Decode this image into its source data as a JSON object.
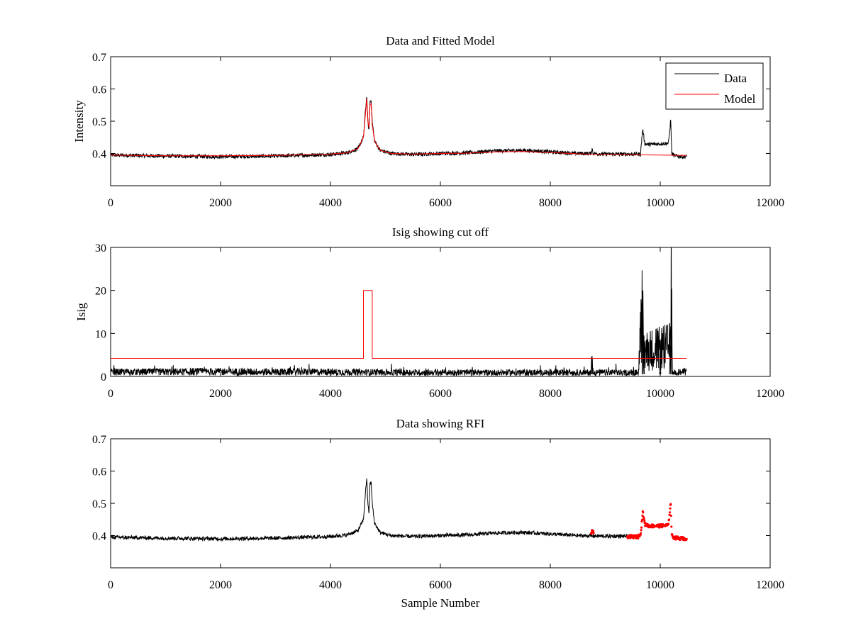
{
  "chart_data": [
    {
      "type": "line",
      "title": "Data and Fitted Model",
      "xlabel": "",
      "ylabel": "Intensity",
      "xlim": [
        0,
        12000
      ],
      "ylim": [
        0.3,
        0.7
      ],
      "xticks": [
        0,
        2000,
        4000,
        6000,
        8000,
        10000,
        12000
      ],
      "yticks": [
        0.4,
        0.5,
        0.6,
        0.7
      ],
      "ytick_labels": [
        "0.4",
        "0.5",
        "0.6",
        "0.7"
      ],
      "legend": {
        "position": "top-right",
        "entries": [
          "Data",
          "Model"
        ]
      },
      "series": [
        {
          "name": "Data",
          "color": "#000000",
          "noise": 0.006,
          "x": [
            0,
            1000,
            2000,
            3000,
            4000,
            4300,
            4500,
            4600,
            4640,
            4660,
            4680,
            4700,
            4720,
            4740,
            4760,
            4800,
            4900,
            5100,
            5500,
            6000,
            6500,
            7000,
            7500,
            8000,
            8500,
            8740,
            8760,
            8780,
            9000,
            9640,
            9680,
            9720,
            9800,
            10000,
            10150,
            10190,
            10210,
            10260,
            10400,
            10480
          ],
          "y": [
            0.395,
            0.392,
            0.39,
            0.392,
            0.397,
            0.402,
            0.415,
            0.45,
            0.54,
            0.58,
            0.5,
            0.47,
            0.56,
            0.565,
            0.5,
            0.44,
            0.41,
            0.4,
            0.397,
            0.4,
            0.402,
            0.408,
            0.41,
            0.405,
            0.4,
            0.4,
            0.415,
            0.4,
            0.398,
            0.398,
            0.475,
            0.43,
            0.428,
            0.43,
            0.432,
            0.505,
            0.4,
            0.393,
            0.39,
            0.39
          ]
        },
        {
          "name": "Model",
          "color": "#ff0000",
          "x": [
            0,
            1000,
            2000,
            3000,
            4000,
            4300,
            4500,
            4600,
            4640,
            4660,
            4680,
            4700,
            4720,
            4740,
            4760,
            4800,
            4900,
            5100,
            5500,
            6000,
            6500,
            7000,
            7500,
            8000,
            8500,
            9000,
            9500,
            10000,
            10480
          ],
          "y": [
            0.395,
            0.393,
            0.393,
            0.394,
            0.398,
            0.402,
            0.415,
            0.45,
            0.53,
            0.57,
            0.5,
            0.48,
            0.55,
            0.555,
            0.49,
            0.44,
            0.41,
            0.4,
            0.398,
            0.4,
            0.401,
            0.405,
            0.406,
            0.403,
            0.399,
            0.397,
            0.396,
            0.395,
            0.394
          ]
        }
      ]
    },
    {
      "type": "line",
      "title": "Isig showing cut off",
      "xlabel": "",
      "ylabel": "Isig",
      "xlim": [
        0,
        12000
      ],
      "ylim": [
        0,
        30
      ],
      "xticks": [
        0,
        2000,
        4000,
        6000,
        8000,
        10000,
        12000
      ],
      "yticks": [
        0,
        10,
        20,
        30
      ],
      "ytick_labels": [
        "0",
        "10",
        "20",
        "30"
      ],
      "series": [
        {
          "color": "#000000",
          "noise_band": [
            0,
            3.5
          ],
          "x": [
            0,
            2000,
            4000,
            6000,
            8000,
            8740,
            8760,
            8780,
            9600,
            9680,
            9700,
            10000,
            10180,
            10200,
            10220,
            10480
          ],
          "y": [
            1.0,
            1.1,
            1.0,
            0.9,
            0.9,
            0.9,
            4.8,
            0.9,
            0.9,
            16.2,
            6.0,
            6.5,
            7.0,
            22.3,
            1.0,
            1.0
          ]
        },
        {
          "color": "#ff0000",
          "x": [
            0,
            4600,
            4600,
            4760,
            4760,
            10480
          ],
          "y": [
            4.2,
            4.2,
            20,
            20,
            4.2,
            4.2
          ]
        }
      ]
    },
    {
      "type": "line",
      "title": "Data showing RFI",
      "xlabel": "Sample Number",
      "ylabel": "",
      "xlim": [
        0,
        12000
      ],
      "ylim": [
        0.3,
        0.7
      ],
      "xticks": [
        0,
        2000,
        4000,
        6000,
        8000,
        10000,
        12000
      ],
      "yticks": [
        0.4,
        0.5,
        0.6,
        0.7
      ],
      "ytick_labels": [
        "0.4",
        "0.5",
        "0.6",
        "0.7"
      ],
      "series": [
        {
          "color": "#000000",
          "noise": 0.006,
          "x": [
            0,
            1000,
            2000,
            3000,
            4000,
            4300,
            4500,
            4600,
            4640,
            4660,
            4680,
            4700,
            4720,
            4740,
            4760,
            4800,
            4900,
            5100,
            5500,
            6000,
            6500,
            7000,
            7500,
            8000,
            8500,
            9000,
            9400
          ],
          "y": [
            0.395,
            0.392,
            0.39,
            0.392,
            0.397,
            0.402,
            0.415,
            0.45,
            0.54,
            0.58,
            0.5,
            0.47,
            0.56,
            0.565,
            0.5,
            0.44,
            0.41,
            0.4,
            0.397,
            0.4,
            0.402,
            0.408,
            0.41,
            0.405,
            0.4,
            0.398,
            0.398
          ]
        },
        {
          "color": "#ff0000",
          "marker": "dot",
          "flagged_ranges": [
            [
              8740,
              8790
            ],
            [
              9400,
              10480
            ]
          ],
          "x": [
            8740,
            8760,
            8790,
            9400,
            9600,
            9650,
            9680,
            9720,
            9800,
            10000,
            10150,
            10190,
            10210,
            10260,
            10480
          ],
          "y": [
            0.405,
            0.418,
            0.405,
            0.397,
            0.396,
            0.41,
            0.475,
            0.435,
            0.43,
            0.43,
            0.432,
            0.505,
            0.4,
            0.393,
            0.39
          ]
        }
      ]
    }
  ]
}
